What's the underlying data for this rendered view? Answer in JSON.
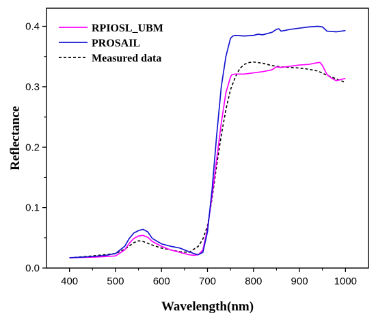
{
  "chart_data": {
    "type": "line",
    "title": "",
    "xlabel": "Wavelength(nm)",
    "ylabel": "Reflectance",
    "xlim": [
      350,
      1050
    ],
    "ylim": [
      0.0,
      0.43
    ],
    "x_ticks": [
      400,
      500,
      600,
      700,
      800,
      900,
      1000
    ],
    "x_tick_labels": [
      "400",
      "500",
      "600",
      "700",
      "800",
      "900",
      "1000"
    ],
    "y_ticks": [
      0.0,
      0.1,
      0.2,
      0.3,
      0.4
    ],
    "y_tick_labels": [
      "0.0",
      "0.1",
      "0.2",
      "0.3",
      "0.4"
    ],
    "grid": false,
    "legend_position": "top-left",
    "series": [
      {
        "name": "RPIOSL_UBM",
        "color": "#ff00ff",
        "style": "solid",
        "x": [
          400,
          450,
          480,
          500,
          520,
          530,
          540,
          550,
          560,
          570,
          580,
          600,
          620,
          640,
          660,
          670,
          680,
          690,
          700,
          710,
          720,
          730,
          740,
          750,
          753,
          760,
          780,
          800,
          820,
          840,
          850,
          860,
          880,
          900,
          920,
          940,
          945,
          950,
          960,
          970,
          980,
          1000
        ],
        "y": [
          0.017,
          0.018,
          0.019,
          0.02,
          0.03,
          0.041,
          0.049,
          0.053,
          0.054,
          0.051,
          0.044,
          0.036,
          0.03,
          0.026,
          0.022,
          0.021,
          0.022,
          0.03,
          0.065,
          0.12,
          0.18,
          0.24,
          0.29,
          0.316,
          0.32,
          0.321,
          0.321,
          0.323,
          0.325,
          0.328,
          0.333,
          0.332,
          0.334,
          0.336,
          0.337,
          0.34,
          0.34,
          0.335,
          0.32,
          0.314,
          0.31,
          0.314
        ]
      },
      {
        "name": "PROSAIL",
        "color": "#1515d0",
        "style": "solid",
        "x": [
          400,
          450,
          480,
          500,
          520,
          530,
          540,
          550,
          560,
          570,
          580,
          600,
          620,
          640,
          660,
          670,
          680,
          690,
          700,
          710,
          720,
          730,
          740,
          750,
          755,
          760,
          780,
          800,
          810,
          820,
          840,
          850,
          855,
          860,
          880,
          900,
          920,
          940,
          950,
          960,
          980,
          1000
        ],
        "y": [
          0.017,
          0.019,
          0.021,
          0.024,
          0.036,
          0.049,
          0.058,
          0.062,
          0.064,
          0.06,
          0.049,
          0.04,
          0.036,
          0.033,
          0.027,
          0.024,
          0.022,
          0.026,
          0.06,
          0.13,
          0.22,
          0.3,
          0.35,
          0.38,
          0.384,
          0.385,
          0.384,
          0.385,
          0.387,
          0.386,
          0.39,
          0.395,
          0.396,
          0.392,
          0.395,
          0.397,
          0.399,
          0.4,
          0.399,
          0.392,
          0.391,
          0.393
        ]
      },
      {
        "name": "Measured data",
        "color": "#000000",
        "style": "dashed",
        "x": [
          400,
          450,
          500,
          520,
          540,
          550,
          560,
          580,
          600,
          620,
          640,
          660,
          680,
          690,
          700,
          710,
          720,
          730,
          740,
          750,
          760,
          770,
          780,
          790,
          800,
          820,
          840,
          860,
          880,
          900,
          920,
          940,
          960,
          980,
          1000
        ],
        "y": [
          0.017,
          0.02,
          0.024,
          0.031,
          0.042,
          0.045,
          0.044,
          0.038,
          0.033,
          0.03,
          0.027,
          0.026,
          0.036,
          0.048,
          0.07,
          0.115,
          0.17,
          0.22,
          0.262,
          0.295,
          0.315,
          0.33,
          0.337,
          0.34,
          0.341,
          0.339,
          0.335,
          0.333,
          0.332,
          0.331,
          0.329,
          0.326,
          0.319,
          0.313,
          0.307
        ]
      }
    ]
  }
}
